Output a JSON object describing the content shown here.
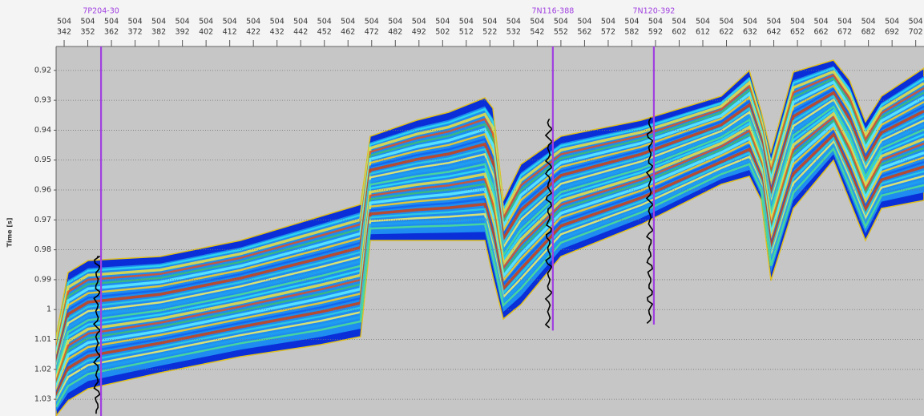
{
  "chart_data": {
    "type": "seismic-section",
    "y_label": "Time [s]",
    "ylim": [
      0.912,
      1.0356
    ],
    "yticks": [
      0.92,
      0.93,
      0.94,
      0.95,
      0.96,
      0.97,
      0.98,
      0.99,
      1,
      1.01,
      1.02,
      1.03
    ],
    "grid": true,
    "xlim": [
      338.6,
      705.5
    ],
    "xticks": [
      {
        "inline": 504,
        "crossline": 342
      },
      {
        "inline": 504,
        "crossline": 352
      },
      {
        "inline": 504,
        "crossline": 362
      },
      {
        "inline": 504,
        "crossline": 372
      },
      {
        "inline": 504,
        "crossline": 382
      },
      {
        "inline": 504,
        "crossline": 392
      },
      {
        "inline": 504,
        "crossline": 402
      },
      {
        "inline": 504,
        "crossline": 412
      },
      {
        "inline": 504,
        "crossline": 422
      },
      {
        "inline": 504,
        "crossline": 432
      },
      {
        "inline": 504,
        "crossline": 442
      },
      {
        "inline": 504,
        "crossline": 452
      },
      {
        "inline": 504,
        "crossline": 462
      },
      {
        "inline": 504,
        "crossline": 472
      },
      {
        "inline": 504,
        "crossline": 482
      },
      {
        "inline": 504,
        "crossline": 492
      },
      {
        "inline": 504,
        "crossline": 502
      },
      {
        "inline": 504,
        "crossline": 512
      },
      {
        "inline": 504,
        "crossline": 522
      },
      {
        "inline": 504,
        "crossline": 532
      },
      {
        "inline": 504,
        "crossline": 542
      },
      {
        "inline": 504,
        "crossline": 552
      },
      {
        "inline": 504,
        "crossline": 562
      },
      {
        "inline": 504,
        "crossline": 572
      },
      {
        "inline": 504,
        "crossline": 582
      },
      {
        "inline": 504,
        "crossline": 592
      },
      {
        "inline": 504,
        "crossline": 602
      },
      {
        "inline": 504,
        "crossline": 612
      },
      {
        "inline": 504,
        "crossline": 622
      },
      {
        "inline": 504,
        "crossline": 632
      },
      {
        "inline": 504,
        "crossline": 642
      },
      {
        "inline": 504,
        "crossline": 652
      },
      {
        "inline": 504,
        "crossline": 662
      },
      {
        "inline": 504,
        "crossline": 672
      },
      {
        "inline": 504,
        "crossline": 682
      },
      {
        "inline": 504,
        "crossline": 692
      },
      {
        "inline": 504,
        "crossline": 702
      }
    ],
    "wells": [
      {
        "name": "7P204-30",
        "crossline": 357.6,
        "time_range": [
          0.912,
          1.0356
        ],
        "color": "#a040e0"
      },
      {
        "name": "7N116-388",
        "crossline": 548.6,
        "time_range": [
          0.912,
          1.007
        ],
        "color": "#a040e0"
      },
      {
        "name": "7N120-392",
        "crossline": 591.3,
        "time_range": [
          0.912,
          1.005
        ],
        "color": "#a040e0"
      }
    ]
  }
}
